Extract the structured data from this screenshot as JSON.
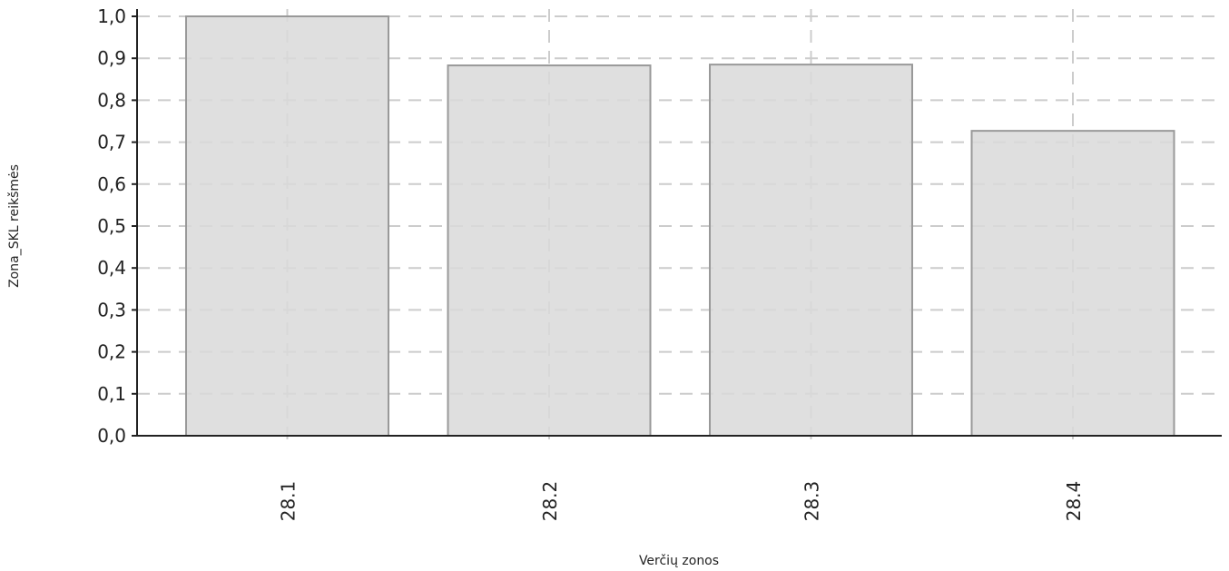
{
  "chart_data": {
    "type": "bar",
    "categories": [
      "28.1",
      "28.2",
      "28.3",
      "28.4"
    ],
    "values": [
      1.0,
      0.883,
      0.885,
      0.727
    ],
    "title": "",
    "xlabel": "Verčių zonos",
    "ylabel": "Zona_SKL reikšmės",
    "ylim": [
      0,
      1.0
    ],
    "yticks": [
      "0,0",
      "0,1",
      "0,2",
      "0,3",
      "0,4",
      "0,5",
      "0,6",
      "0,7",
      "0,8",
      "0,9",
      "1,0"
    ],
    "grid": true,
    "legend": "none",
    "colors": {
      "bar_fill": "#d9d9d9",
      "bar_stroke": "#999999",
      "grid": "#cccccc",
      "axis": "#222222"
    }
  }
}
